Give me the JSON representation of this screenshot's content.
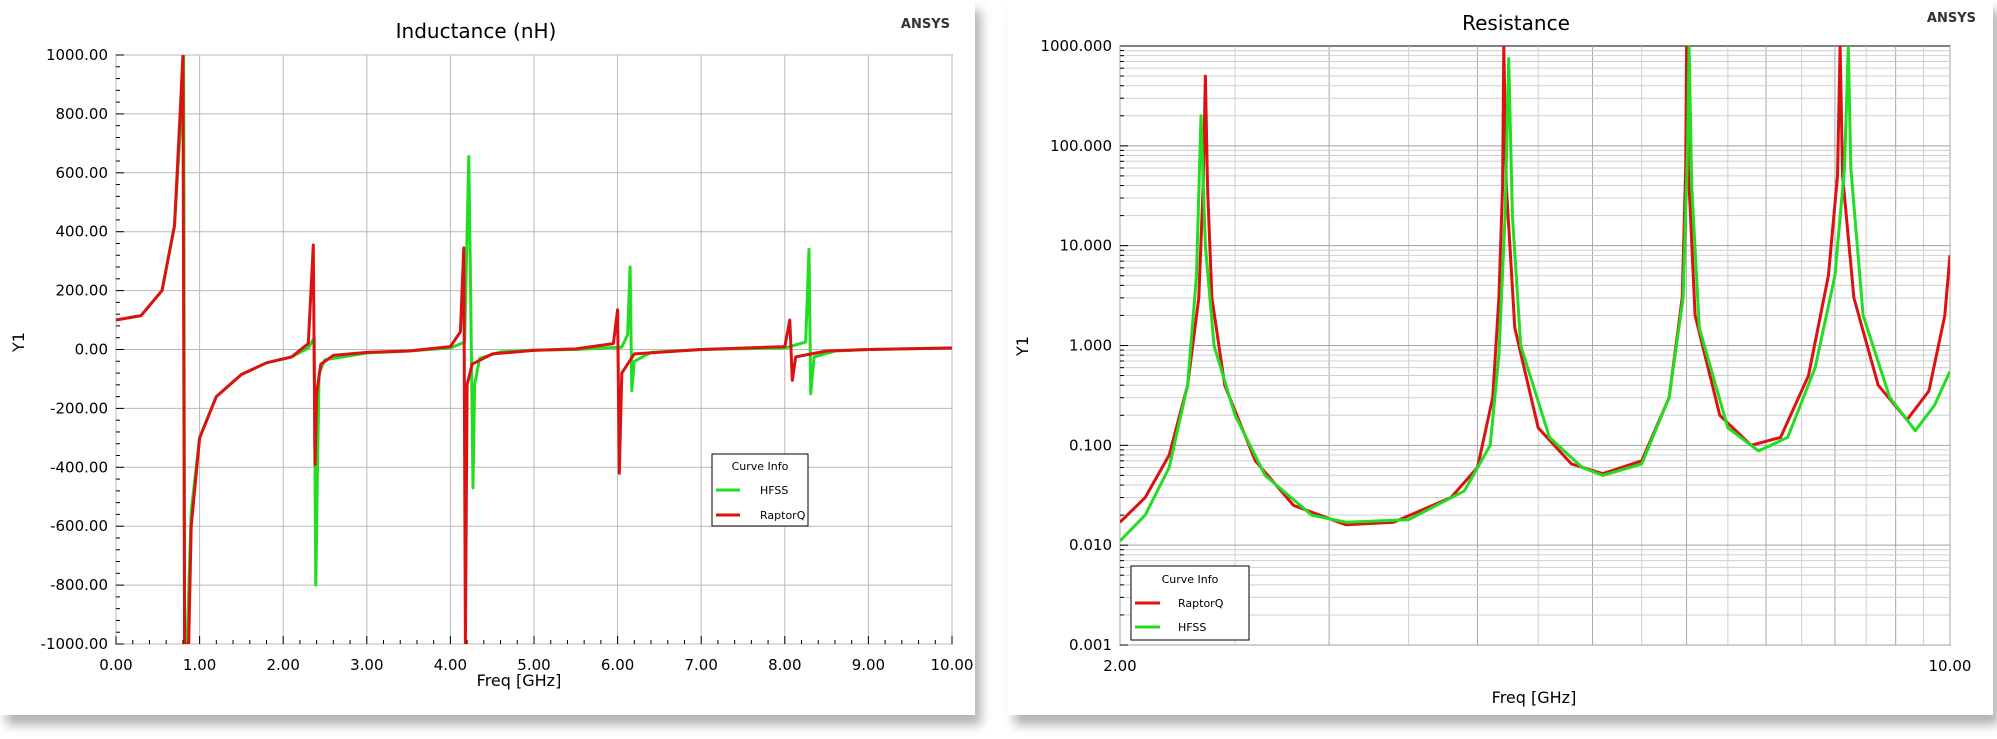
{
  "chart_data": [
    {
      "type": "line",
      "title": "Inductance (nH)",
      "brand": "ANSYS",
      "xlabel": "Freq [GHz]",
      "ylabel": "Y1",
      "xlim": [
        0,
        10
      ],
      "ylim": [
        -1000,
        1000
      ],
      "x_ticks": [
        "0.00",
        "1.00",
        "2.00",
        "3.00",
        "4.00",
        "5.00",
        "6.00",
        "7.00",
        "8.00",
        "9.00",
        "10.00"
      ],
      "y_ticks": [
        "1000.00",
        "800.00",
        "600.00",
        "400.00",
        "200.00",
        "0.00",
        "-200.00",
        "-400.00",
        "-600.00",
        "-800.00",
        "-1000.00"
      ],
      "grid": true,
      "legend": {
        "title": "Curve Info",
        "placement": "lower-right",
        "entries": [
          "HFSS",
          "RaptorQ"
        ]
      },
      "series": [
        {
          "name": "HFSS",
          "color": "#22dd22",
          "points": [
            [
              0,
              100
            ],
            [
              0.3,
              115
            ],
            [
              0.55,
              200
            ],
            [
              0.7,
              420
            ],
            [
              0.78,
              800
            ],
            [
              0.81,
              1000
            ],
            [
              0.82,
              -1000
            ],
            [
              0.85,
              -1000
            ],
            [
              0.9,
              -550
            ],
            [
              1.0,
              -300
            ],
            [
              1.2,
              -160
            ],
            [
              1.5,
              -85
            ],
            [
              1.8,
              -45
            ],
            [
              2.1,
              -25
            ],
            [
              2.3,
              5
            ],
            [
              2.37,
              40
            ],
            [
              2.39,
              -800
            ],
            [
              2.41,
              -400
            ],
            [
              2.43,
              -80
            ],
            [
              2.5,
              -35
            ],
            [
              3.0,
              -12
            ],
            [
              3.5,
              -5
            ],
            [
              4.0,
              5
            ],
            [
              4.17,
              25
            ],
            [
              4.22,
              655
            ],
            [
              4.24,
              230
            ],
            [
              4.27,
              -470
            ],
            [
              4.29,
              -120
            ],
            [
              4.35,
              -30
            ],
            [
              4.6,
              -8
            ],
            [
              5.0,
              -2
            ],
            [
              5.5,
              0
            ],
            [
              6.05,
              8
            ],
            [
              6.12,
              50
            ],
            [
              6.15,
              280
            ],
            [
              6.17,
              -140
            ],
            [
              6.2,
              -40
            ],
            [
              6.4,
              -10
            ],
            [
              7.0,
              0
            ],
            [
              8.0,
              5
            ],
            [
              8.25,
              25
            ],
            [
              8.29,
              340
            ],
            [
              8.31,
              -150
            ],
            [
              8.35,
              -25
            ],
            [
              8.6,
              -5
            ],
            [
              9.0,
              0
            ],
            [
              10,
              5
            ]
          ]
        },
        {
          "name": "RaptorQ",
          "color": "#dd1111",
          "points": [
            [
              0,
              100
            ],
            [
              0.3,
              115
            ],
            [
              0.55,
              200
            ],
            [
              0.7,
              420
            ],
            [
              0.77,
              820
            ],
            [
              0.8,
              1000
            ],
            [
              0.82,
              -1000
            ],
            [
              0.87,
              -1000
            ],
            [
              0.9,
              -600
            ],
            [
              1.0,
              -300
            ],
            [
              1.2,
              -160
            ],
            [
              1.5,
              -85
            ],
            [
              1.8,
              -45
            ],
            [
              2.1,
              -25
            ],
            [
              2.3,
              20
            ],
            [
              2.36,
              355
            ],
            [
              2.38,
              -390
            ],
            [
              2.4,
              -150
            ],
            [
              2.45,
              -50
            ],
            [
              2.6,
              -20
            ],
            [
              3.0,
              -10
            ],
            [
              3.5,
              -5
            ],
            [
              4.0,
              10
            ],
            [
              4.12,
              60
            ],
            [
              4.16,
              345
            ],
            [
              4.18,
              -1000
            ],
            [
              4.2,
              -120
            ],
            [
              4.26,
              -50
            ],
            [
              4.5,
              -15
            ],
            [
              5.0,
              -3
            ],
            [
              5.5,
              2
            ],
            [
              5.95,
              20
            ],
            [
              6.0,
              135
            ],
            [
              6.02,
              -420
            ],
            [
              6.05,
              -80
            ],
            [
              6.2,
              -15
            ],
            [
              7.0,
              0
            ],
            [
              8.0,
              10
            ],
            [
              8.06,
              100
            ],
            [
              8.09,
              -105
            ],
            [
              8.13,
              -25
            ],
            [
              8.5,
              -5
            ],
            [
              9.0,
              0
            ],
            [
              10,
              5
            ]
          ]
        }
      ]
    },
    {
      "type": "line",
      "title": "Resistance",
      "brand": "ANSYS",
      "xlabel": "Freq [GHz]",
      "ylabel": "Y1",
      "xlim": [
        2,
        10
      ],
      "x_scale": "log",
      "ylim": [
        0.001,
        1000
      ],
      "y_scale": "log",
      "x_ticks": [
        "2.00",
        "10.00"
      ],
      "y_ticks": [
        "1000.000",
        "100.000",
        "10.000",
        "1.000",
        "0.100",
        "0.010",
        "0.001"
      ],
      "grid": true,
      "legend": {
        "title": "Curve Info",
        "placement": "lower-left",
        "entries": [
          "RaptorQ",
          "HFSS"
        ]
      },
      "series": [
        {
          "name": "RaptorQ",
          "color": "#dd1111",
          "points": [
            [
              2.0,
              0.017
            ],
            [
              2.1,
              0.03
            ],
            [
              2.2,
              0.08
            ],
            [
              2.28,
              0.4
            ],
            [
              2.33,
              3
            ],
            [
              2.35,
              40
            ],
            [
              2.36,
              500
            ],
            [
              2.37,
              40
            ],
            [
              2.39,
              3
            ],
            [
              2.45,
              0.4
            ],
            [
              2.6,
              0.07
            ],
            [
              2.8,
              0.025
            ],
            [
              3.1,
              0.016
            ],
            [
              3.4,
              0.017
            ],
            [
              3.8,
              0.03
            ],
            [
              4.0,
              0.06
            ],
            [
              4.12,
              0.3
            ],
            [
              4.17,
              3
            ],
            [
              4.2,
              40
            ],
            [
              4.21,
              1000
            ],
            [
              4.23,
              40
            ],
            [
              4.3,
              1.5
            ],
            [
              4.5,
              0.15
            ],
            [
              4.8,
              0.065
            ],
            [
              5.1,
              0.052
            ],
            [
              5.5,
              0.07
            ],
            [
              5.8,
              0.3
            ],
            [
              5.95,
              3
            ],
            [
              5.99,
              60
            ],
            [
              6.0,
              1000
            ],
            [
              6.02,
              60
            ],
            [
              6.1,
              2
            ],
            [
              6.4,
              0.2
            ],
            [
              6.8,
              0.1
            ],
            [
              7.2,
              0.12
            ],
            [
              7.6,
              0.5
            ],
            [
              7.9,
              5
            ],
            [
              8.04,
              50
            ],
            [
              8.08,
              1000
            ],
            [
              8.12,
              50
            ],
            [
              8.3,
              3
            ],
            [
              8.7,
              0.4
            ],
            [
              9.2,
              0.18
            ],
            [
              9.6,
              0.35
            ],
            [
              9.9,
              2
            ],
            [
              10.0,
              8
            ]
          ]
        },
        {
          "name": "HFSS",
          "color": "#22dd22",
          "points": [
            [
              2.0,
              0.011
            ],
            [
              2.1,
              0.02
            ],
            [
              2.2,
              0.06
            ],
            [
              2.28,
              0.4
            ],
            [
              2.32,
              5
            ],
            [
              2.34,
              200
            ],
            [
              2.36,
              10
            ],
            [
              2.4,
              1
            ],
            [
              2.5,
              0.2
            ],
            [
              2.65,
              0.05
            ],
            [
              2.9,
              0.02
            ],
            [
              3.1,
              0.017
            ],
            [
              3.5,
              0.018
            ],
            [
              3.9,
              0.035
            ],
            [
              4.1,
              0.1
            ],
            [
              4.17,
              0.8
            ],
            [
              4.22,
              20
            ],
            [
              4.25,
              750
            ],
            [
              4.28,
              20
            ],
            [
              4.35,
              1
            ],
            [
              4.6,
              0.12
            ],
            [
              4.9,
              0.06
            ],
            [
              5.1,
              0.05
            ],
            [
              5.5,
              0.065
            ],
            [
              5.8,
              0.3
            ],
            [
              5.96,
              3
            ],
            [
              6.01,
              80
            ],
            [
              6.03,
              1000
            ],
            [
              6.06,
              40
            ],
            [
              6.15,
              1.5
            ],
            [
              6.5,
              0.15
            ],
            [
              6.9,
              0.088
            ],
            [
              7.3,
              0.12
            ],
            [
              7.7,
              0.6
            ],
            [
              8.0,
              5
            ],
            [
              8.15,
              60
            ],
            [
              8.21,
              1000
            ],
            [
              8.25,
              60
            ],
            [
              8.45,
              2
            ],
            [
              8.9,
              0.3
            ],
            [
              9.35,
              0.14
            ],
            [
              9.7,
              0.25
            ],
            [
              10.0,
              0.55
            ]
          ]
        }
      ]
    }
  ]
}
